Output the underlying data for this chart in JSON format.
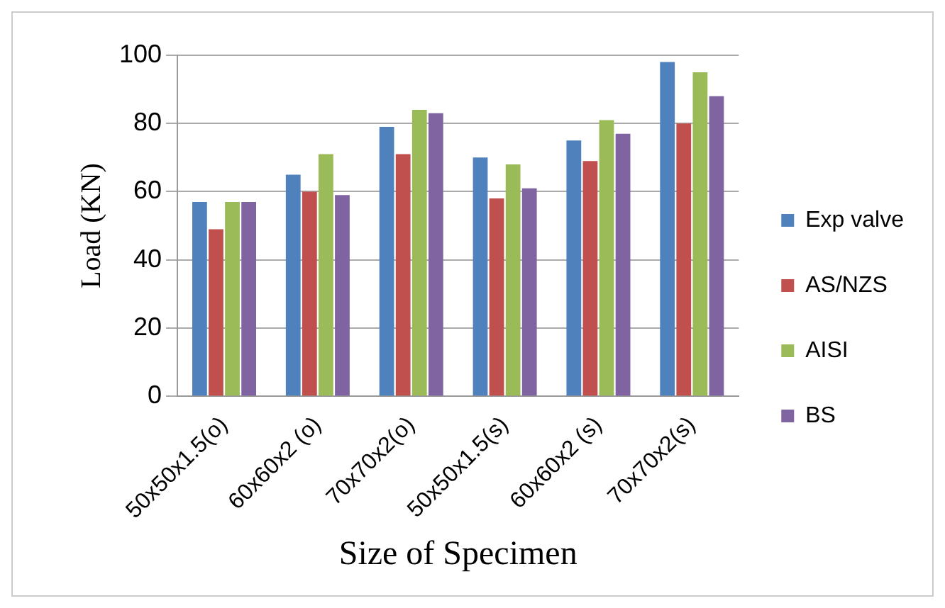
{
  "chart_data": {
    "type": "bar",
    "xlabel": "Size of Specimen",
    "ylabel": "Load (KN)",
    "categories": [
      "50x50x1.5(o)",
      "60x60x2 (o)",
      "70x70x2(o)",
      "50x50x1.5(s)",
      "60x60x2 (s)",
      "70x70x2(s)"
    ],
    "series": [
      {
        "name": "Exp valve",
        "color": "#4f81bd",
        "values": [
          57,
          65,
          79,
          70,
          75,
          98
        ]
      },
      {
        "name": "AS/NZS",
        "color": "#c0504d",
        "values": [
          49,
          60,
          71,
          58,
          69,
          80
        ]
      },
      {
        "name": "AISI",
        "color": "#9bbb59",
        "values": [
          57,
          71,
          84,
          68,
          81,
          95
        ]
      },
      {
        "name": "BS",
        "color": "#8064a2",
        "values": [
          57,
          59,
          83,
          61,
          77,
          88
        ]
      }
    ],
    "ylim": [
      0,
      100
    ],
    "yticks": [
      0,
      20,
      40,
      60,
      80,
      100
    ],
    "grid": "y",
    "legend": "right"
  }
}
